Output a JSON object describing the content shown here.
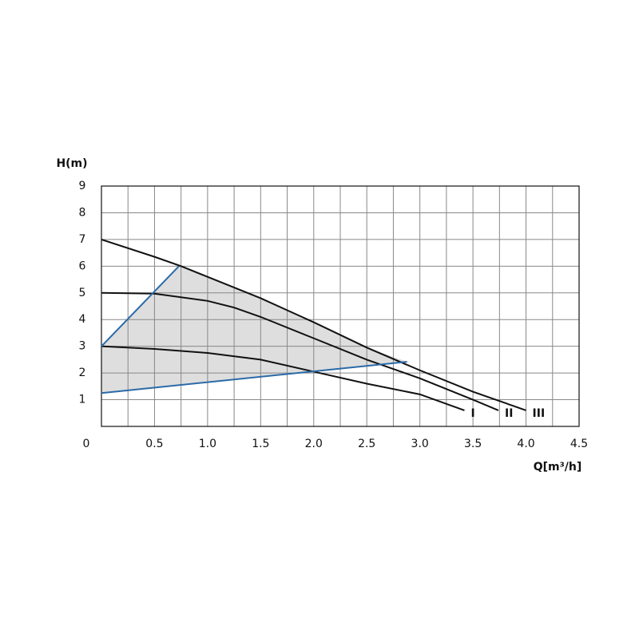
{
  "chart_data": {
    "type": "line",
    "y_label": "H(m)",
    "x_label": "Q[m³/h]",
    "xlim": [
      0,
      4.5
    ],
    "ylim": [
      0,
      9
    ],
    "xticks": [
      0,
      0.5,
      {
        "value": 1,
        "label": "1.0"
      },
      1.5,
      {
        "value": 2,
        "label": "2.0"
      },
      2.5,
      {
        "value": 3,
        "label": "3.0"
      },
      3.5,
      {
        "value": 4,
        "label": "4.0"
      },
      4.5
    ],
    "yticks": [
      1,
      2,
      3,
      4,
      5,
      6,
      7,
      8,
      9
    ],
    "grid": true,
    "region_fill": "#dedede",
    "series": [
      {
        "name": "I",
        "color": "#111111",
        "x": [
          0,
          0.5,
          1.0,
          1.5,
          2.0,
          2.5,
          3.0,
          3.42
        ],
        "values": [
          3,
          2.9,
          2.75,
          2.5,
          2.05,
          1.6,
          1.2,
          0.6
        ]
      },
      {
        "name": "II",
        "color": "#111111",
        "x": [
          0,
          0.5,
          1.0,
          1.25,
          1.5,
          2.0,
          2.5,
          3.0,
          3.5,
          3.74
        ],
        "values": [
          5,
          4.97,
          4.7,
          4.45,
          4.1,
          3.3,
          2.5,
          1.8,
          1.0,
          0.6
        ]
      },
      {
        "name": "III",
        "color": "#111111",
        "x": [
          0,
          0.5,
          0.75,
          1.0,
          1.5,
          2.0,
          2.5,
          3.0,
          3.5,
          4.0
        ],
        "values": [
          7,
          6.35,
          6.0,
          5.6,
          4.8,
          3.9,
          2.95,
          2.1,
          1.3,
          0.6
        ]
      },
      {
        "color": "#2a6aa8",
        "x": [
          0,
          0.73
        ],
        "values": [
          3,
          6.0
        ]
      },
      {
        "color": "#2a6aa8",
        "x": [
          0,
          2.88
        ],
        "values": [
          1.25,
          2.42
        ]
      }
    ]
  }
}
